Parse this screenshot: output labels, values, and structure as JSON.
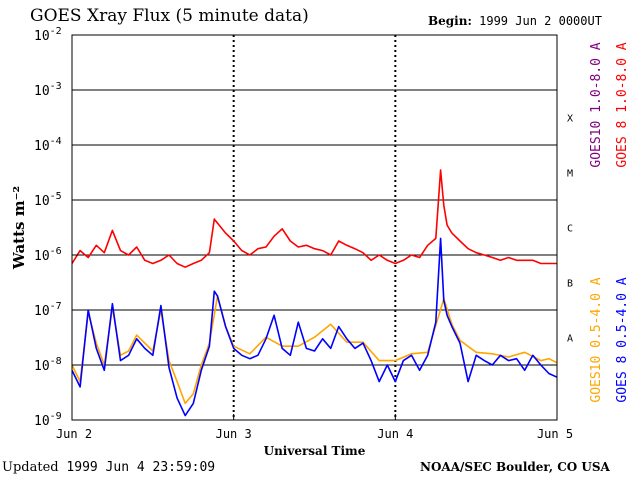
{
  "header": {
    "title": "GOES Xray Flux (5 minute data)",
    "begin_label": "Begin:",
    "begin_value": "1999 Jun 2 0000UT"
  },
  "footer": {
    "updated_label": "Updated",
    "updated_value": "1999 Jun  4 23:59:09",
    "credit": "NOAA/SEC Boulder, CO USA"
  },
  "colors": {
    "goes10_long": "#800080",
    "goes8_long": "#ff0000",
    "goes10_short": "#ffa500",
    "goes8_short": "#0000ff",
    "grid": "#000000"
  },
  "chart_data": {
    "type": "line",
    "title": "GOES Xray Flux (5 minute data)",
    "xlabel": "Universal Time",
    "ylabel": "Watts m⁻²",
    "yscale": "log",
    "ylim": [
      1e-09,
      0.01
    ],
    "xlim": [
      0,
      3
    ],
    "x_unit": "days since 1999 Jun 2 0000UT",
    "x_ticks": [
      {
        "value": 0,
        "label": "Jun 2"
      },
      {
        "value": 1,
        "label": "Jun 3"
      },
      {
        "value": 2,
        "label": "Jun 4"
      },
      {
        "value": 3,
        "label": "Jun 5"
      }
    ],
    "y_ticks": [
      {
        "exp": -9,
        "label": "10",
        "sup": "-9"
      },
      {
        "exp": -8,
        "label": "10",
        "sup": "-8"
      },
      {
        "exp": -7,
        "label": "10",
        "sup": "-7"
      },
      {
        "exp": -6,
        "label": "10",
        "sup": "-6"
      },
      {
        "exp": -5,
        "label": "10",
        "sup": "-5"
      },
      {
        "exp": -4,
        "label": "10",
        "sup": "-4"
      },
      {
        "exp": -3,
        "label": "10",
        "sup": "-3"
      },
      {
        "exp": -2,
        "label": "10",
        "sup": "-2"
      }
    ],
    "flare_classes": [
      {
        "label": "A",
        "exp": -8
      },
      {
        "label": "B",
        "exp": -7
      },
      {
        "label": "C",
        "exp": -6
      },
      {
        "label": "M",
        "exp": -5
      },
      {
        "label": "X",
        "exp": -4
      }
    ],
    "grid": true,
    "legend": [
      {
        "name": "GOES10 1.0-8.0 A",
        "color": "#800080"
      },
      {
        "name": "GOES 8 1.0-8.0 A",
        "color": "#ff0000"
      },
      {
        "name": "GOES10 0.5-4.0 A",
        "color": "#ffa500"
      },
      {
        "name": "GOES 8 0.5-4.0 A",
        "color": "#0000ff"
      }
    ],
    "series": [
      {
        "name": "GOES 8 1.0-8.0 A",
        "color": "#ff0000",
        "x": [
          0,
          0.05,
          0.1,
          0.15,
          0.2,
          0.25,
          0.3,
          0.35,
          0.4,
          0.45,
          0.5,
          0.55,
          0.6,
          0.65,
          0.7,
          0.75,
          0.8,
          0.85,
          0.88,
          0.9,
          0.95,
          1.0,
          1.05,
          1.1,
          1.15,
          1.2,
          1.25,
          1.3,
          1.35,
          1.4,
          1.45,
          1.5,
          1.55,
          1.6,
          1.65,
          1.7,
          1.75,
          1.8,
          1.85,
          1.9,
          1.95,
          2.0,
          2.05,
          2.1,
          2.15,
          2.2,
          2.25,
          2.28,
          2.3,
          2.32,
          2.35,
          2.4,
          2.45,
          2.5,
          2.55,
          2.6,
          2.65,
          2.7,
          2.75,
          2.8,
          2.85,
          2.9,
          2.95,
          3.0
        ],
        "y": [
          7e-07,
          1.2e-06,
          9e-07,
          1.5e-06,
          1.1e-06,
          2.8e-06,
          1.2e-06,
          1e-06,
          1.4e-06,
          8e-07,
          7e-07,
          8e-07,
          1e-06,
          7e-07,
          6e-07,
          7e-07,
          8e-07,
          1.1e-06,
          4.5e-06,
          3.8e-06,
          2.5e-06,
          1.8e-06,
          1.2e-06,
          1e-06,
          1.3e-06,
          1.4e-06,
          2.2e-06,
          3e-06,
          1.8e-06,
          1.4e-06,
          1.5e-06,
          1.3e-06,
          1.2e-06,
          1e-06,
          1.8e-06,
          1.5e-06,
          1.3e-06,
          1.1e-06,
          8e-07,
          1e-06,
          8e-07,
          7e-07,
          8e-07,
          1e-06,
          9e-07,
          1.5e-06,
          2e-06,
          3.5e-05,
          8e-06,
          3.5e-06,
          2.5e-06,
          1.8e-06,
          1.3e-06,
          1.1e-06,
          1e-06,
          9e-07,
          8e-07,
          9e-07,
          8e-07,
          8e-07,
          8e-07,
          7e-07,
          7e-07,
          7e-07
        ]
      },
      {
        "name": "GOES 8 0.5-4.0 A",
        "color": "#0000ff",
        "x": [
          0,
          0.05,
          0.1,
          0.15,
          0.2,
          0.25,
          0.3,
          0.35,
          0.4,
          0.45,
          0.5,
          0.55,
          0.6,
          0.65,
          0.7,
          0.75,
          0.8,
          0.85,
          0.88,
          0.9,
          0.95,
          1.0,
          1.05,
          1.1,
          1.15,
          1.2,
          1.25,
          1.3,
          1.35,
          1.4,
          1.45,
          1.5,
          1.55,
          1.6,
          1.65,
          1.7,
          1.75,
          1.8,
          1.85,
          1.9,
          1.95,
          2.0,
          2.05,
          2.1,
          2.15,
          2.2,
          2.25,
          2.28,
          2.3,
          2.32,
          2.35,
          2.4,
          2.45,
          2.5,
          2.55,
          2.6,
          2.65,
          2.7,
          2.75,
          2.8,
          2.85,
          2.9,
          2.95,
          3.0
        ],
        "y": [
          8e-09,
          4e-09,
          1e-07,
          2e-08,
          8e-09,
          1.3e-07,
          1.2e-08,
          1.5e-08,
          3e-08,
          2e-08,
          1.5e-08,
          1.2e-07,
          9e-09,
          2.5e-09,
          1.2e-09,
          2e-09,
          8e-09,
          2.2e-08,
          2.2e-07,
          1.8e-07,
          5e-08,
          2e-08,
          1.5e-08,
          1.3e-08,
          1.5e-08,
          3e-08,
          8e-08,
          2e-08,
          1.5e-08,
          6e-08,
          2e-08,
          1.8e-08,
          3e-08,
          2e-08,
          5e-08,
          3e-08,
          2e-08,
          2.5e-08,
          1.2e-08,
          5e-09,
          1e-08,
          5e-09,
          1.2e-08,
          1.5e-08,
          8e-09,
          1.5e-08,
          6e-08,
          2e-06,
          1.5e-07,
          8e-08,
          5e-08,
          2.5e-08,
          5e-09,
          1.5e-08,
          1.2e-08,
          1e-08,
          1.5e-08,
          1.2e-08,
          1.3e-08,
          8e-09,
          1.5e-08,
          1e-08,
          7e-09,
          6e-09
        ]
      },
      {
        "name": "GOES10 0.5-4.0 A",
        "color": "#ffa500",
        "x": [
          0,
          0.05,
          0.1,
          0.15,
          0.2,
          0.25,
          0.3,
          0.35,
          0.4,
          0.45,
          0.5,
          0.55,
          0.6,
          0.65,
          0.7,
          0.75,
          0.8,
          0.85,
          0.9,
          0.95,
          1.0,
          1.1,
          1.2,
          1.3,
          1.4,
          1.5,
          1.6,
          1.7,
          1.8,
          1.9,
          2.0,
          2.1,
          2.2,
          2.3,
          2.35,
          2.4,
          2.5,
          2.6,
          2.7,
          2.8,
          2.9,
          2.95,
          3.0
        ],
        "y": [
          1e-08,
          5e-09,
          9e-08,
          2.5e-08,
          1e-08,
          1.1e-07,
          1.5e-08,
          1.8e-08,
          3.5e-08,
          2.5e-08,
          1.8e-08,
          1e-07,
          1.2e-08,
          5e-09,
          2e-09,
          3e-09,
          1e-08,
          2.5e-08,
          1.8e-07,
          5e-08,
          2.2e-08,
          1.6e-08,
          3.2e-08,
          2.2e-08,
          2.2e-08,
          3.2e-08,
          5.5e-08,
          2.6e-08,
          2.6e-08,
          1.2e-08,
          1.2e-08,
          1.6e-08,
          1.7e-08,
          1.6e-07,
          5.5e-08,
          2.8e-08,
          1.7e-08,
          1.6e-08,
          1.4e-08,
          1.7e-08,
          1.2e-08,
          1.3e-08,
          1.1e-08
        ]
      }
    ]
  }
}
